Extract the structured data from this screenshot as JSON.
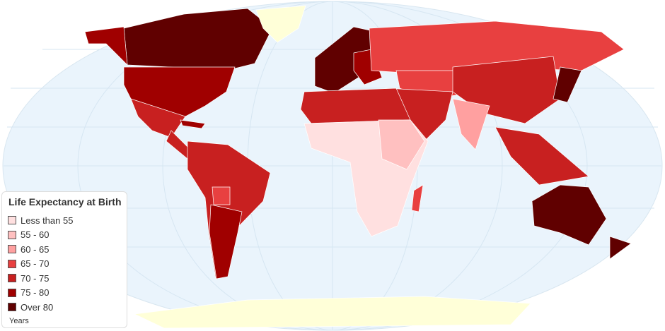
{
  "legend": {
    "title": "Life Expectancy at Birth",
    "unit": "Years",
    "items": [
      {
        "label": "Less than 55",
        "color": "#FFE0E0"
      },
      {
        "label": "55 - 60",
        "color": "#FFC0C0"
      },
      {
        "label": "60 - 65",
        "color": "#FFA0A0"
      },
      {
        "label": "65 - 70",
        "color": "#E84040"
      },
      {
        "label": "70 - 75",
        "color": "#C82020"
      },
      {
        "label": "75 - 80",
        "color": "#A00000"
      },
      {
        "label": "Over 80",
        "color": "#600000"
      }
    ]
  },
  "colors": {
    "ocean": "#EAF4FC",
    "no_data": "#FFFFD8",
    "border": "#ffffff"
  }
}
